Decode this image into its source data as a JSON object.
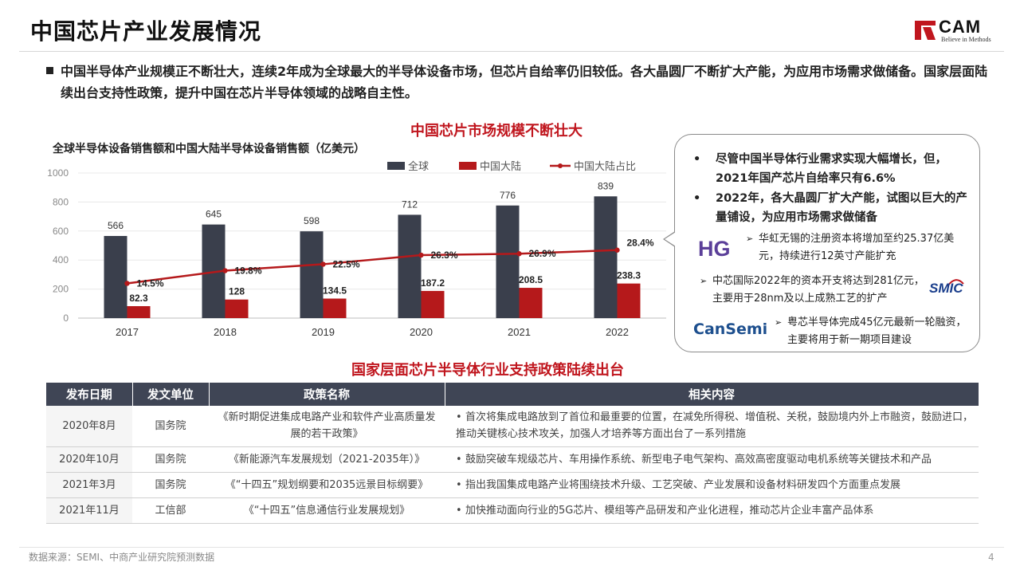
{
  "header": {
    "title": "中国芯片产业发展情况",
    "logo_text": "CAM",
    "logo_tagline": "Believe in Methods"
  },
  "intro": {
    "text": "中国半导体产业规模正不断壮大，连续2年成为全球最大的半导体设备市场，但芯片自给率仍旧较低。各大晶圆厂不断扩大产能，为应用市场需求做储备。国家层面陆续出台支持性政策，提升中国在芯片半导体领域的战略自主性。"
  },
  "section1_title": "中国芯片市场规模不断壮大",
  "chart_data": {
    "type": "bar",
    "title": "全球半导体设备销售额和中国大陆半导体设备销售额（亿美元）",
    "categories": [
      "2017",
      "2018",
      "2019",
      "2020",
      "2021",
      "2022"
    ],
    "series": [
      {
        "name": "全球",
        "type": "bar",
        "color": "#3a3f4c",
        "values": [
          566,
          645,
          598,
          712,
          776,
          839
        ],
        "labels": [
          "566",
          "645",
          "598",
          "712",
          "776",
          "839"
        ]
      },
      {
        "name": "中国大陆",
        "type": "bar",
        "color": "#b5191b",
        "values": [
          82.3,
          128,
          134.5,
          187.2,
          208.5,
          238.3
        ],
        "labels": [
          "82.3",
          "128",
          "134.5",
          "187.2",
          "208.5",
          "238.3"
        ]
      },
      {
        "name": "中国大陆占比",
        "type": "line",
        "color": "#b5191b",
        "values": [
          14.5,
          19.8,
          22.5,
          26.3,
          26.9,
          28.4
        ],
        "labels": [
          "14.5%",
          "19.8%",
          "22.5%",
          "26.3%",
          "26.9%",
          "28.4%"
        ]
      }
    ],
    "yticks": [
      "0",
      "200",
      "400",
      "600",
      "800",
      "1000"
    ],
    "ylim": [
      0,
      1000
    ],
    "legend_position": "top-right",
    "grid": true
  },
  "bubble": {
    "point1": "尽管中国半导体行业需求实现大幅增长，但，2021年国产芯片自给率只有6.6%",
    "point2": "2022年，各大晶圆厂扩大产能，试图以巨大的产量铺设，为应用市场需求做储备",
    "bullet_glyph": "•",
    "arrow_glyph": "➢",
    "sub1": "华虹无锡的注册资本将增加至约25.37亿美元，持续进行12英寸产能扩充",
    "sub2": "中芯国际2022年的资本开支将达到281亿元，主要用于28nm及以上成熟工艺的扩产",
    "sub3": "粤芯半导体完成45亿元最新一轮融资，主要将用于新一期项目建设",
    "logo_hg": "HG",
    "logo_smic": "SMIC",
    "logo_cansemi": "CanSemi"
  },
  "section2_title": "国家层面芯片半导体行业支持政策陆续出台",
  "table": {
    "headers": [
      "发布日期",
      "发文单位",
      "政策名称",
      "相关内容"
    ],
    "rows": [
      {
        "date": "2020年8月",
        "org": "国务院",
        "name": "《新时期促进集成电路产业和软件产业高质量发展的若干政策》",
        "content": "首次将集成电路放到了首位和最重要的位置，在减免所得税、增值税、关税，鼓励境内外上市融资，鼓励进口，推动关键核心技术攻关，加强人才培养等方面出台了一系列措施"
      },
      {
        "date": "2020年10月",
        "org": "国务院",
        "name": "《新能源汽车发展规划（2021-2035年）》",
        "content": "鼓励突破车规级芯片、车用操作系统、新型电子电气架构、高效高密度驱动电机系统等关键技术和产品"
      },
      {
        "date": "2021年3月",
        "org": "国务院",
        "name": "《“十四五”规划纲要和2035远景目标纲要》",
        "content": "指出我国集成电路产业将围绕技术升级、工艺突破、产业发展和设备材料研发四个方面重点发展"
      },
      {
        "date": "2021年11月",
        "org": "工信部",
        "name": "《“十四五”信息通信行业发展规划》",
        "content": "加快推动面向行业的5G芯片、模组等产品研发和产业化进程，推动芯片企业丰富产品体系"
      }
    ],
    "bullet": "•"
  },
  "footer": {
    "source": "数据来源：SEMI、中商产业研究院预测数据",
    "page": "4"
  }
}
